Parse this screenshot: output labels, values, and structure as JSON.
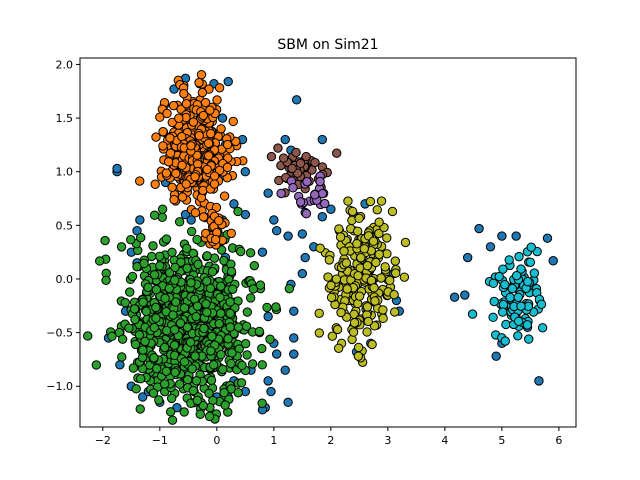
{
  "chart_data": {
    "type": "scatter",
    "title": "SBM on Sim21",
    "xlabel": "",
    "ylabel": "",
    "xlim": [
      -2.4,
      6.3
    ],
    "ylim": [
      -1.38,
      2.06
    ],
    "xticks": [
      -2,
      -1,
      0,
      1,
      2,
      3,
      4,
      5,
      6
    ],
    "yticks": [
      -1.0,
      -0.5,
      0.0,
      0.5,
      1.0,
      1.5,
      2.0
    ],
    "xtick_labels": [
      "−2",
      "−1",
      "0",
      "1",
      "2",
      "3",
      "4",
      "5",
      "6"
    ],
    "ytick_labels": [
      "−1.0",
      "−0.5",
      "0.0",
      "0.5",
      "1.0",
      "1.5",
      "2.0"
    ],
    "grid": false,
    "legend": "none",
    "marker_edge_color": "#000000",
    "clusters": [
      {
        "color": "#2ca02c",
        "center": [
          -0.5,
          -0.4
        ],
        "spread": [
          0.55,
          0.35
        ],
        "count": 900
      },
      {
        "color": "#ff7f0e",
        "center": [
          -0.4,
          1.2
        ],
        "spread": [
          0.28,
          0.25
        ],
        "count": 420
      },
      {
        "color": "#ff7f0e",
        "center": [
          -0.05,
          0.45
        ],
        "spread": [
          0.12,
          0.1
        ],
        "count": 25
      },
      {
        "color": "#bcbd22",
        "center": [
          2.5,
          0.0
        ],
        "spread": [
          0.28,
          0.28
        ],
        "count": 230
      },
      {
        "color": "#17becf",
        "center": [
          5.25,
          -0.15
        ],
        "spread": [
          0.25,
          0.2
        ],
        "count": 90
      },
      {
        "color": "#8c564b",
        "center": [
          1.4,
          1.02
        ],
        "spread": [
          0.22,
          0.09
        ],
        "count": 55
      },
      {
        "color": "#9467bd",
        "center": [
          1.65,
          0.78
        ],
        "spread": [
          0.18,
          0.08
        ],
        "count": 22
      }
    ],
    "outliers": {
      "color": "#1f77b4",
      "points": [
        [
          -0.55,
          1.87
        ],
        [
          -0.3,
          1.82
        ],
        [
          -0.05,
          1.82
        ],
        [
          0.2,
          1.84
        ],
        [
          -0.75,
          1.77
        ],
        [
          -0.92,
          1.62
        ],
        [
          0.1,
          1.5
        ],
        [
          1.4,
          1.67
        ],
        [
          1.2,
          1.3
        ],
        [
          1.3,
          1.2
        ],
        [
          1.85,
          1.3
        ],
        [
          0.45,
          1.3
        ],
        [
          0.15,
          1.25
        ],
        [
          0.5,
          1.0
        ],
        [
          1.6,
          1.05
        ],
        [
          0.9,
          0.8
        ],
        [
          1.5,
          0.7
        ],
        [
          2.0,
          0.65
        ],
        [
          1.55,
          0.62
        ],
        [
          1.85,
          0.58
        ],
        [
          1.0,
          0.55
        ],
        [
          0.5,
          0.6
        ],
        [
          -0.55,
          0.6
        ],
        [
          -0.45,
          0.55
        ],
        [
          1.05,
          0.45
        ],
        [
          1.25,
          0.4
        ],
        [
          1.5,
          0.42
        ],
        [
          1.7,
          0.3
        ],
        [
          0.8,
          0.25
        ],
        [
          1.5,
          0.05
        ],
        [
          1.55,
          0.2
        ],
        [
          -1.35,
          0.55
        ],
        [
          -1.4,
          0.45
        ],
        [
          -1.5,
          0.25
        ],
        [
          -1.4,
          0.15
        ],
        [
          -1.75,
          1.0
        ],
        [
          -1.75,
          1.03
        ],
        [
          4.6,
          0.47
        ],
        [
          4.4,
          0.2
        ],
        [
          4.35,
          -0.15
        ],
        [
          4.17,
          -0.17
        ],
        [
          4.8,
          0.3
        ],
        [
          5.0,
          0.4
        ],
        [
          5.25,
          0.4
        ],
        [
          5.8,
          0.38
        ],
        [
          5.9,
          0.17
        ],
        [
          3.1,
          0.05
        ],
        [
          3.15,
          -0.2
        ],
        [
          3.2,
          -0.3
        ],
        [
          2.15,
          0.45
        ],
        [
          2.4,
          0.6
        ],
        [
          2.6,
          0.7
        ],
        [
          1.3,
          -0.05
        ],
        [
          1.35,
          -0.3
        ],
        [
          1.35,
          -0.55
        ],
        [
          1.35,
          -0.7
        ],
        [
          1.05,
          -0.7
        ],
        [
          1.2,
          -0.85
        ],
        [
          0.9,
          -0.35
        ],
        [
          0.9,
          -0.95
        ],
        [
          0.95,
          -1.05
        ],
        [
          0.85,
          -1.2
        ],
        [
          1.25,
          -1.15
        ],
        [
          0.5,
          -1.05
        ],
        [
          0.2,
          -1.1
        ],
        [
          0.8,
          -1.22
        ],
        [
          1.0,
          -0.6
        ],
        [
          -1.7,
          -0.5
        ],
        [
          -1.7,
          -0.8
        ],
        [
          -1.6,
          -0.3
        ],
        [
          -1.9,
          -0.55
        ],
        [
          -1.5,
          -1.0
        ],
        [
          -1.3,
          -1.1
        ],
        [
          -1.0,
          -1.15
        ],
        [
          -0.7,
          -1.2
        ],
        [
          -0.4,
          -1.05
        ],
        [
          0.0,
          -1.1
        ],
        [
          0.3,
          -0.95
        ],
        [
          0.6,
          -0.85
        ],
        [
          0.75,
          -0.5
        ],
        [
          -1.2,
          -1.05
        ],
        [
          5.65,
          -0.95
        ],
        [
          4.9,
          -0.72
        ],
        [
          5.0,
          -0.6
        ],
        [
          5.45,
          -0.45
        ],
        [
          2.45,
          -0.68
        ],
        [
          2.7,
          -0.6
        ],
        [
          0.1,
          0.55
        ],
        [
          -0.9,
          0.9
        ],
        [
          0.05,
          0.95
        ],
        [
          0.3,
          0.7
        ],
        [
          -0.6,
          0.2
        ],
        [
          0.15,
          0.2
        ]
      ]
    }
  }
}
